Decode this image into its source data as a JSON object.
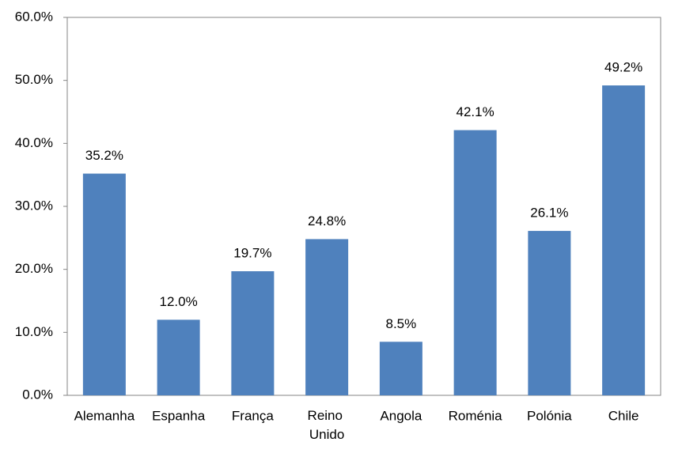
{
  "chart_data": {
    "type": "bar",
    "categories": [
      "Alemanha",
      "Espanha",
      "França",
      "Reino Unido",
      "Angola",
      "Roménia",
      "Polónia",
      "Chile"
    ],
    "values": [
      35.2,
      12.0,
      19.7,
      24.8,
      8.5,
      42.1,
      26.1,
      49.2
    ],
    "value_labels": [
      "35.2%",
      "12.0%",
      "19.7%",
      "24.8%",
      "8.5%",
      "42.1%",
      "26.1%",
      "49.2%"
    ],
    "color": "#4f81bd",
    "ylim": [
      0,
      60
    ],
    "yticks": [
      {
        "value": 0,
        "label": "0.0%"
      },
      {
        "value": 10,
        "label": "10.0%"
      },
      {
        "value": 20,
        "label": "20.0%"
      },
      {
        "value": 30,
        "label": "30.0%"
      },
      {
        "value": 40,
        "label": "40.0%"
      },
      {
        "value": 50,
        "label": "50.0%"
      },
      {
        "value": 60,
        "label": "60.0%"
      }
    ],
    "grid": false
  }
}
